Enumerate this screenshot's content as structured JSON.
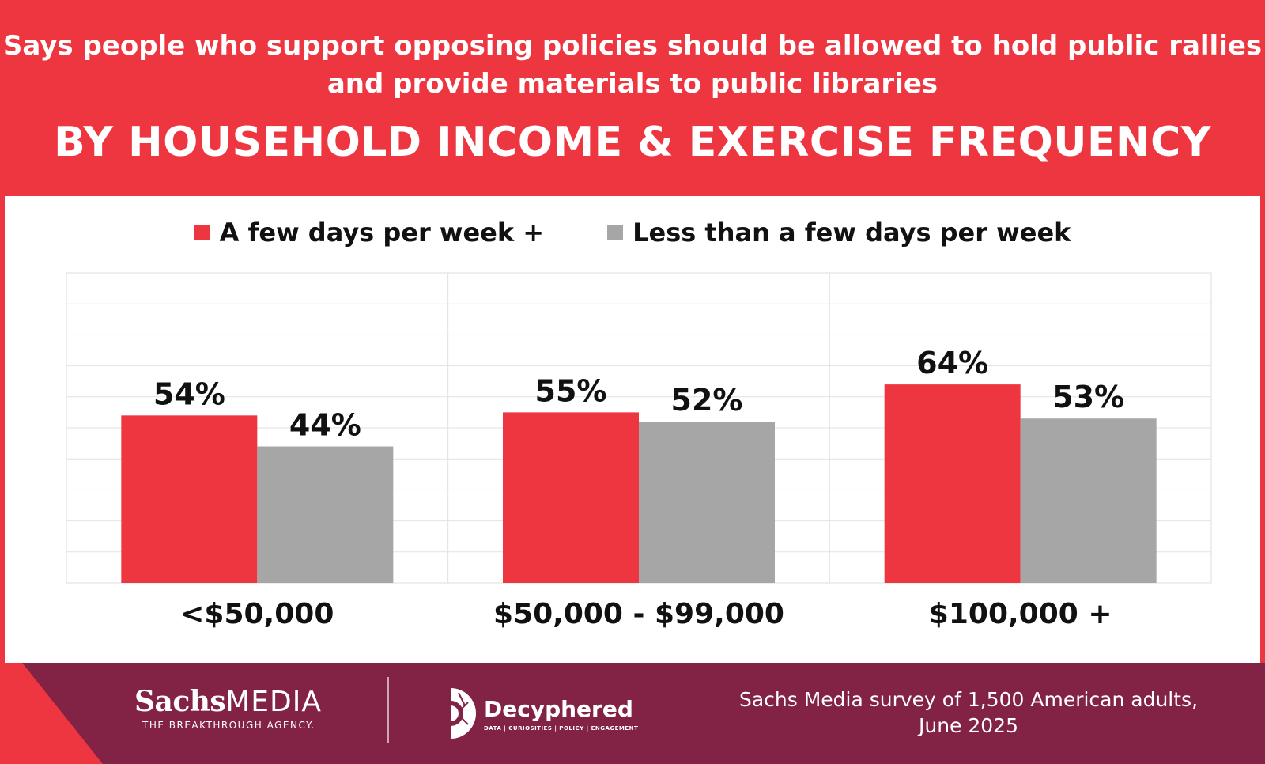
{
  "header": {
    "subtitle": "Says people who support opposing policies should be allowed to hold public rallies and provide materials to public libraries",
    "title": "BY HOUSEHOLD INCOME & EXERCISE FREQUENCY"
  },
  "colors": {
    "brand_red": "#ee3641",
    "gray_series": "#a6a6a6",
    "footer_maroon": "#822244"
  },
  "chart_data": {
    "type": "bar",
    "title": "BY HOUSEHOLD INCOME & EXERCISE FREQUENCY",
    "categories": [
      "<$50,000",
      "$50,000 - $99,000",
      "$100,000 +"
    ],
    "series": [
      {
        "name": "A few days per week +",
        "values": [
          54,
          55,
          64
        ],
        "labels": [
          "54%",
          "55%",
          "64%"
        ],
        "color": "#ee3641"
      },
      {
        "name": "Less than a few days per week",
        "values": [
          44,
          52,
          53
        ],
        "labels": [
          "44%",
          "52%",
          "53%"
        ],
        "color": "#a6a6a6"
      }
    ],
    "ylim": [
      0,
      100
    ],
    "grid": true,
    "legend": "top-center"
  },
  "footer": {
    "brand_name_bold": "Sachs",
    "brand_name_light": "MEDIA",
    "brand_tagline": "THE BREAKTHROUGH AGENCY.",
    "partner_name": "Decyphered",
    "partner_tagline": "DATA | CURIOSITIES | POLICY | ENGAGEMENT",
    "source_line1": "Sachs Media survey of 1,500 American adults,",
    "source_line2": "June 2025"
  }
}
